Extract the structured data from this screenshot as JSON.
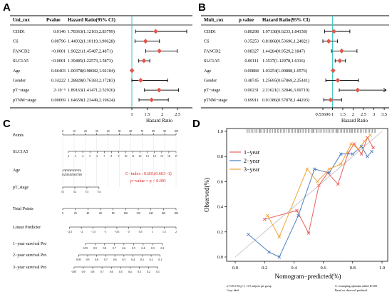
{
  "panels": {
    "a": "A",
    "b": "B",
    "c": "C",
    "d": "D"
  },
  "chart_data": [
    {
      "type": "forest",
      "panel": "A",
      "headers": {
        "var": "Uni_cox",
        "p": "Pvalue",
        "hr": "Hazard Ratio(95% CI)"
      },
      "rows": [
        {
          "name": "CISD1",
          "p": "0.0146",
          "hr_text": "1.78363(1.12103,2.83799)",
          "hr": 1.78363,
          "lo": 1.12103,
          "hi": 2.83799,
          "arrow": false
        },
        {
          "name": "CS",
          "p": "0.00796",
          "hr_text": "1.44932(1.10119,1.90628)",
          "hr": 1.44932,
          "lo": 1.10119,
          "hi": 1.90628,
          "arrow": false
        },
        {
          "name": "FANCD2",
          "p": "<0.0001",
          "hr_text": "1.90221(1.45487,2.4871)",
          "hr": 1.90221,
          "lo": 1.45487,
          "hi": 2.4871,
          "arrow": false
        },
        {
          "name": "SLC1A5",
          "p": "<0.0001",
          "hr_text": "1.39485(1.22573,1.5873)",
          "hr": 1.39485,
          "lo": 1.22573,
          "hi": 1.5873,
          "arrow": false
        },
        {
          "name": "Age",
          "p": "0.66403",
          "hr_text": "1.00378(0.98682,1.02104)",
          "hr": 1.00378,
          "lo": 0.98682,
          "hi": 1.02104,
          "arrow": false
        },
        {
          "name": "Gender",
          "p": "0.34222",
          "hr_text": "1.28828(0.76383,2.17283)",
          "hr": 1.28828,
          "lo": 0.76383,
          "hi": 2.17283,
          "arrow": false
        },
        {
          "name": "pT−stage",
          "p": "2·10⁻⁵",
          "hr_text": "1.89163(1.41471,2.52926)",
          "hr": 1.89163,
          "lo": 1.41471,
          "hi": 2.52926,
          "arrow": false
        },
        {
          "name": "pTNM−stage",
          "p": "0.00069",
          "hr_text": "1.64659(1.23449,2.19624)",
          "hr": 1.64659,
          "lo": 1.23449,
          "hi": 2.19624,
          "arrow": false
        }
      ],
      "xlim": [
        1,
        2.8
      ],
      "xticks": [
        {
          "v": 1,
          "l": "1"
        },
        {
          "v": 1.5,
          "l": "1.5"
        },
        {
          "v": 2,
          "l": "2"
        },
        {
          "v": 2.5,
          "l": "2.5"
        }
      ],
      "xlabel": "Hazard Ratio",
      "colors": {
        "point": "#e2574c",
        "ref": "#3ec7c2"
      }
    },
    {
      "type": "forest",
      "panel": "B",
      "headers": {
        "var": "Mult_cox",
        "p": "p.value",
        "hr": "Hazard Ratio(95% CI)"
      },
      "rows": [
        {
          "name": "CISD1",
          "p": "0.80298",
          "hr_text": "1.07138(0.6233,1.84158)",
          "hr": 1.07138,
          "lo": 0.6233,
          "hi": 1.84158,
          "arrow": false
        },
        {
          "name": "CS",
          "p": "0.35253",
          "hr_text": "0.81868(0.53696,1.24821)",
          "hr": 0.81868,
          "lo": 0.53696,
          "hi": 1.24821,
          "arrow": false
        },
        {
          "name": "FANCD2",
          "p": "0.08327",
          "hr_text": "1.44284(0.9529,2.1847)",
          "hr": 1.44284,
          "lo": 0.9529,
          "hi": 2.1847,
          "arrow": false
        },
        {
          "name": "SLC1A5",
          "p": "0.00111",
          "hr_text": "1.3537(1.12978,1.6316)",
          "hr": 1.3537,
          "lo": 1.12978,
          "hi": 1.6316,
          "arrow": false
        },
        {
          "name": "Age",
          "p": "0.00884",
          "hr_text": "1.03254(1.00808,1.0576)",
          "hr": 1.03254,
          "lo": 1.00808,
          "hi": 1.0576,
          "arrow": false
        },
        {
          "name": "Gender",
          "p": "0.48745",
          "hr_text": "1.25695(0.67869,2.25441)",
          "hr": 1.25695,
          "lo": 0.67869,
          "hi": 2.25441,
          "arrow": false
        },
        {
          "name": "pT−stage",
          "p": "0.00231",
          "hr_text": "2.21621(1.32846,3.69719)",
          "hr": 2.21621,
          "lo": 1.32846,
          "hi": 3.69719,
          "arrow": true
        },
        {
          "name": "pTNM−stage",
          "p": "0.69911",
          "hr_text": "0.91386(0.57878,1.44293)",
          "hr": 0.91386,
          "lo": 0.57878,
          "hi": 1.44293,
          "arrow": false
        }
      ],
      "xlim": [
        0.53696,
        3.6
      ],
      "xticks": [
        {
          "v": 0.53696,
          "l": "0.53696"
        },
        {
          "v": 1,
          "l": "1"
        },
        {
          "v": 1.5,
          "l": "1.5"
        },
        {
          "v": 2,
          "l": "2"
        },
        {
          "v": 2.5,
          "l": "2.5"
        },
        {
          "v": 3,
          "l": "3"
        },
        {
          "v": 3.5,
          "l": "3.5"
        }
      ],
      "xlabel": "Hazard Ratio",
      "colors": {
        "point": "#e2574c",
        "ref": "#3ec7c2"
      }
    },
    {
      "type": "nomogram",
      "panel": "C",
      "rows": [
        {
          "label": "Points",
          "ticks": [
            "0",
            "10",
            "20",
            "30",
            "40",
            "50",
            "60",
            "70",
            "80",
            "90",
            "100"
          ],
          "start": 0,
          "end": 100
        },
        {
          "label": "SLC1A5",
          "ticks": [
            "2",
            "3",
            "4",
            "5",
            "6",
            "7",
            "8",
            "9",
            "10",
            "11",
            "12",
            "13",
            "14",
            "15",
            "16",
            "17"
          ],
          "start": 5,
          "end": 100
        },
        {
          "label": "Age",
          "ticks": [
            "15",
            "25",
            "35",
            "45",
            "55",
            "65",
            "75",
            "85"
          ],
          "start": 0,
          "end": 16
        },
        {
          "label": "pT_stage",
          "ticks": [
            "T1",
            "T2",
            "T3",
            "T4"
          ],
          "start": 0,
          "end": 32
        },
        {
          "label": "Total Points",
          "ticks": [
            "0",
            "20",
            "40",
            "60",
            "80",
            "100",
            "120",
            "140",
            "160",
            "180"
          ],
          "start": 0,
          "end": 100
        },
        {
          "label": "Linear Predictor",
          "ticks": [
            "−2.5",
            "−2",
            "−1.5",
            "−1",
            "−0.5",
            "0",
            "0.5",
            "1",
            "1.5",
            "2"
          ],
          "start": 6,
          "end": 100
        },
        {
          "label": "1−year survival Pro",
          "ticks": [
            "0.95",
            "0.9",
            "0.8",
            "0.7",
            "0.6",
            "0.5",
            "0.4",
            "0.3",
            "0.2"
          ],
          "start": 20,
          "end": 88
        },
        {
          "label": "2−year survival Pro",
          "ticks": [
            "0.95",
            "0.9",
            "0.8",
            "0.7",
            "0.6",
            "0.5",
            "0.4",
            "0.3",
            "0.2",
            "0.1"
          ],
          "start": 14,
          "end": 86
        },
        {
          "label": "3−year survival Pro",
          "ticks": [
            "0.95",
            "0.9",
            "0.8",
            "0.7",
            "0.6",
            "0.5",
            "0.4",
            "0.3",
            "0.2",
            "0.1"
          ],
          "start": 10,
          "end": 84
        }
      ],
      "annotation": [
        "C−index : 0.831(0.663−1)",
        "p−value = p < 0.001"
      ],
      "colors": {
        "annotation": "#e2211c"
      }
    },
    {
      "type": "line",
      "panel": "D",
      "xlabel": "Nomogram−predicted(%)",
      "ylabel": "Observed(%)",
      "xlim": [
        0,
        1
      ],
      "ylim": [
        0,
        1
      ],
      "xticks": [
        "0.0",
        "0.2",
        "0.4",
        "0.6",
        "0.8",
        "1.0"
      ],
      "yticks": [
        "0.0",
        "0.2",
        "0.4",
        "0.6",
        "0.8",
        "1.0"
      ],
      "legend": "top-left",
      "series": [
        {
          "name": "1−year",
          "color": "#e8615a",
          "x": [
            0.2,
            0.42,
            0.5,
            0.57,
            0.63,
            0.7,
            0.77,
            0.81,
            0.86,
            0.9,
            0.94
          ],
          "y": [
            0.3,
            0.37,
            0.19,
            0.57,
            0.67,
            0.58,
            0.83,
            0.9,
            0.82,
            0.95,
            0.87
          ]
        },
        {
          "name": "2−year",
          "color": "#4a7fc3",
          "x": [
            0.09,
            0.23,
            0.3,
            0.43,
            0.54,
            0.64,
            0.72,
            0.8,
            0.86,
            0.9,
            0.93
          ],
          "y": [
            0.18,
            0.04,
            0.0,
            0.33,
            0.7,
            0.67,
            0.82,
            0.82,
            0.88,
            0.8,
            0.84
          ]
        },
        {
          "name": "3−year",
          "color": "#f2a33a",
          "x": [
            0.22,
            0.3,
            0.49,
            0.56,
            0.64,
            0.72,
            0.79,
            0.84,
            0.88,
            0.92
          ],
          "y": [
            0.33,
            0.16,
            0.7,
            0.6,
            0.7,
            0.74,
            0.9,
            0.86,
            0.92,
            0.97
          ]
        }
      ],
      "ideal_color": "#bbbbbb",
      "footnote_left": "n=139 d=62 p=1, 11.9 subjects per group\nGray: ideal",
      "footnote_right": "X−resampling optimism added, B=200\nBased on observed−predicted"
    }
  ]
}
